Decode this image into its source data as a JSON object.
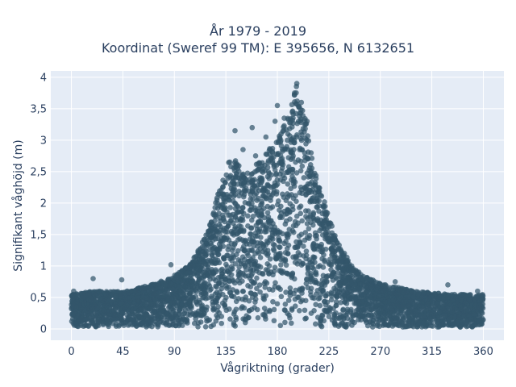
{
  "chart_data": {
    "type": "scatter",
    "title": "År 1979 - 2019",
    "subtitle": "Koordinat (Sweref 99 TM): E 395656, N 6132651",
    "xlabel": "Vågriktning (grader)",
    "ylabel": "Signifikant våghöjd (m)",
    "xlim": [
      -18,
      378
    ],
    "ylim": [
      -0.18,
      4.1
    ],
    "xticks": [
      0,
      45,
      90,
      135,
      180,
      225,
      270,
      315,
      360
    ],
    "xtick_labels": [
      "0",
      "45",
      "90",
      "135",
      "180",
      "225",
      "270",
      "315",
      "360"
    ],
    "yticks": [
      0,
      0.5,
      1,
      1.5,
      2,
      2.5,
      3,
      3.5,
      4
    ],
    "ytick_labels": [
      "0",
      "0,5",
      "1",
      "1,5",
      "2",
      "2,5",
      "3",
      "3,5",
      "4"
    ],
    "grid": true,
    "marker_color": "#33566b",
    "plot_bg": "#e5ecf6",
    "envelope": {
      "direction_deg": [
        0,
        20,
        45,
        70,
        90,
        105,
        120,
        130,
        140,
        150,
        160,
        170,
        180,
        190,
        197,
        205,
        212,
        220,
        230,
        245,
        260,
        275,
        300,
        330,
        360
      ],
      "max_height_m": [
        0.55,
        0.6,
        0.6,
        0.7,
        0.85,
        1.05,
        1.6,
        2.3,
        2.8,
        2.5,
        2.6,
        2.8,
        3.0,
        3.4,
        3.9,
        3.3,
        2.6,
        2.1,
        1.5,
        1.0,
        0.8,
        0.7,
        0.6,
        0.55,
        0.55
      ]
    },
    "outlier_points": [
      {
        "x": 197,
        "y": 3.9
      },
      {
        "x": 195,
        "y": 3.75
      },
      {
        "x": 201,
        "y": 3.6
      },
      {
        "x": 180,
        "y": 3.55
      },
      {
        "x": 186,
        "y": 3.35
      },
      {
        "x": 178,
        "y": 3.3
      },
      {
        "x": 206,
        "y": 3.3
      },
      {
        "x": 158,
        "y": 3.2
      },
      {
        "x": 143,
        "y": 3.15
      },
      {
        "x": 170,
        "y": 3.05
      },
      {
        "x": 150,
        "y": 2.85
      },
      {
        "x": 161,
        "y": 2.75
      },
      {
        "x": 19,
        "y": 0.8
      },
      {
        "x": 44,
        "y": 0.78
      },
      {
        "x": 87,
        "y": 1.02
      },
      {
        "x": 245,
        "y": 1.0
      },
      {
        "x": 283,
        "y": 0.75
      },
      {
        "x": 329,
        "y": 0.7
      },
      {
        "x": 355,
        "y": 0.6
      },
      {
        "x": 2,
        "y": 0.6
      }
    ]
  }
}
